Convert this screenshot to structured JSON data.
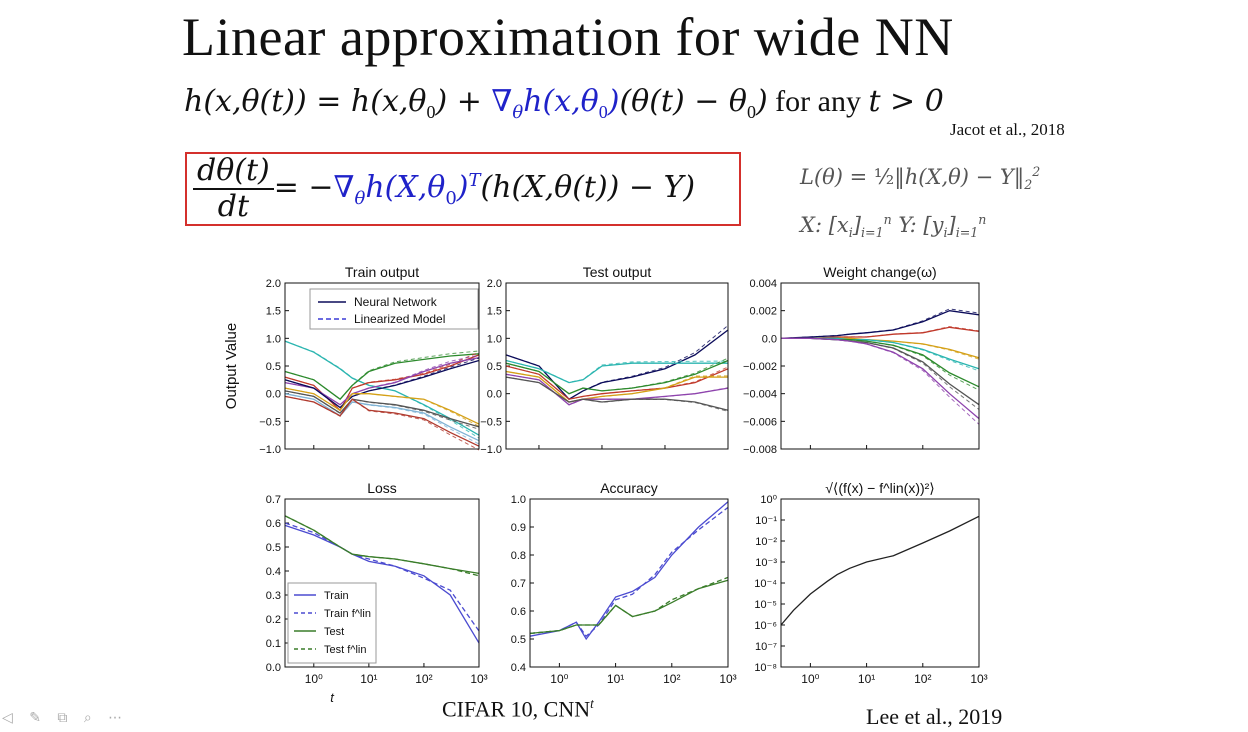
{
  "slide": {
    "title": "Linear approximation for wide NN",
    "eq1_a": "h(x,θ(t)) = h(x,θ",
    "eq1_b": "0",
    "eq1_c": ") + ",
    "eq1_grad": "∇",
    "eq1_gradsub": "θ",
    "eq1_d": "h(x,θ",
    "eq1_e": "0",
    "eq1_f": ")",
    "eq1_g": "(θ(t) − θ",
    "eq1_h": "0",
    "eq1_i": ")",
    "eq1_any": " for any ",
    "eq1_cond": "t > 0",
    "citation_top": "Jacot et al., 2018",
    "eq2_num": "dθ(t)",
    "eq2_den": "dt",
    "eq2_eq": " = −",
    "eq2_grad": "∇",
    "eq2_gradsub": "θ",
    "eq2_h": "h(X,θ",
    "eq2_h0": "0",
    "eq2_hclose": ")",
    "eq2_T": "T",
    "eq2_rest": "(h(X,θ(t)) − Y)",
    "loss_a": "L(θ) = ",
    "loss_half": "½",
    "loss_b": "‖h(X,θ) − Y‖",
    "loss_sub": "2",
    "loss_sup": "2",
    "data_x": "X: [x",
    "data_xi": "i",
    "data_x2": "]",
    "data_xsub": "i=1",
    "data_xsup": "n",
    "data_y": " Y: [y",
    "data_yi": "i",
    "data_y2": "]",
    "data_ysub": "i=1",
    "data_ysup": "n",
    "caption": "CIFAR 10, CNN",
    "caption_sup": "t",
    "citation_bottom": "Lee et al., 2019",
    "controls": "◁ ✎ ⧉ ⌕ ⋯"
  },
  "colors": {
    "blue": "#1f22c9",
    "red_box": "#d4302c",
    "nn": "#0b0b5a",
    "lin": "#3a3ad6",
    "train": "#4b4bd0",
    "test": "#3a7d2a"
  },
  "chart_data": [
    {
      "id": "train_output",
      "type": "line",
      "title": "Train output",
      "ylabel": "Output Value",
      "ylim": [
        -1.0,
        2.0
      ],
      "yticks": [
        "2.0",
        "1.5",
        "1.0",
        "0.5",
        "0.0",
        "−0.5",
        "−1.0"
      ],
      "xscale": "log",
      "xlim": [
        0.3,
        1000
      ],
      "legend": [
        "Neural Network",
        "Linearized Model"
      ],
      "legend_position": "top-right",
      "x": [
        0.3,
        1,
        3,
        5,
        10,
        30,
        100,
        300,
        1000
      ],
      "series": [
        {
          "color": "#2bb5b0",
          "values": [
            0.95,
            0.75,
            0.45,
            0.28,
            0.15,
            0.05,
            -0.2,
            -0.45,
            -0.75
          ]
        },
        {
          "color": "#2d8a2d",
          "values": [
            0.4,
            0.25,
            -0.1,
            0.15,
            0.4,
            0.55,
            0.62,
            0.68,
            0.72
          ]
        },
        {
          "color": "#c0392b",
          "values": [
            0.3,
            0.15,
            -0.3,
            0.1,
            0.2,
            0.25,
            0.35,
            0.5,
            0.7
          ]
        },
        {
          "color": "#8e44ad",
          "values": [
            0.2,
            0.1,
            -0.2,
            0.0,
            0.1,
            0.2,
            0.4,
            0.55,
            0.65
          ]
        },
        {
          "color": "#0b0b5a",
          "values": [
            0.25,
            0.1,
            -0.25,
            -0.05,
            0.05,
            0.15,
            0.3,
            0.45,
            0.6
          ]
        },
        {
          "color": "#d4a017",
          "values": [
            0.1,
            0.0,
            -0.3,
            0.0,
            0.0,
            -0.05,
            -0.1,
            -0.3,
            -0.55
          ]
        },
        {
          "color": "#555555",
          "values": [
            0.05,
            -0.05,
            -0.35,
            -0.1,
            -0.15,
            -0.2,
            -0.3,
            -0.45,
            -0.6
          ]
        },
        {
          "color": "#7fb3d5",
          "values": [
            0.0,
            -0.1,
            -0.4,
            -0.15,
            -0.2,
            -0.25,
            -0.35,
            -0.6,
            -0.85
          ]
        },
        {
          "color": "#b03a2e",
          "values": [
            -0.05,
            -0.15,
            -0.4,
            -0.1,
            -0.3,
            -0.35,
            -0.45,
            -0.7,
            -0.95
          ]
        }
      ]
    },
    {
      "id": "test_output",
      "type": "line",
      "title": "Test output",
      "ylim": [
        -1.0,
        2.0
      ],
      "yticks": [
        "2.0",
        "1.5",
        "1.0",
        "0.5",
        "0.0",
        "−0.5",
        "−1.0"
      ],
      "xscale": "log",
      "xlim": [
        0.3,
        1000
      ],
      "x": [
        0.3,
        1,
        3,
        5,
        10,
        30,
        100,
        300,
        1000
      ],
      "series": [
        {
          "color": "#0b0b5a",
          "values": [
            0.7,
            0.5,
            -0.1,
            0.05,
            0.2,
            0.3,
            0.45,
            0.7,
            1.15
          ]
        },
        {
          "color": "#2bb5b0",
          "values": [
            0.6,
            0.45,
            0.2,
            0.25,
            0.5,
            0.55,
            0.55,
            0.55,
            0.55
          ]
        },
        {
          "color": "#2d8a2d",
          "values": [
            0.55,
            0.4,
            0.0,
            0.1,
            0.05,
            0.1,
            0.2,
            0.35,
            0.6
          ]
        },
        {
          "color": "#c0392b",
          "values": [
            0.5,
            0.35,
            -0.1,
            -0.05,
            0.0,
            0.05,
            0.1,
            0.2,
            0.45
          ]
        },
        {
          "color": "#d4a017",
          "values": [
            0.4,
            0.3,
            -0.15,
            -0.1,
            -0.05,
            0.0,
            0.1,
            0.3,
            0.3
          ]
        },
        {
          "color": "#8e44ad",
          "values": [
            0.35,
            0.25,
            -0.2,
            -0.1,
            -0.1,
            -0.1,
            -0.05,
            0.0,
            0.1
          ]
        },
        {
          "color": "#555555",
          "values": [
            0.3,
            0.2,
            -0.15,
            -0.1,
            -0.15,
            -0.1,
            -0.1,
            -0.15,
            -0.3
          ]
        }
      ]
    },
    {
      "id": "weight_change",
      "type": "line",
      "title": "Weight change(ω)",
      "ylim": [
        -0.008,
        0.004
      ],
      "yticks": [
        "0.004",
        "0.002",
        "0.0",
        "−0.002",
        "−0.004",
        "−0.006",
        "−0.008"
      ],
      "xscale": "log",
      "xlim": [
        0.3,
        1000
      ],
      "x": [
        0.3,
        1,
        3,
        5,
        10,
        30,
        100,
        300,
        1000
      ],
      "series": [
        {
          "color": "#0b0b5a",
          "values": [
            0,
            0.0001,
            0.0002,
            0.0003,
            0.0004,
            0.0006,
            0.0012,
            0.002,
            0.0017
          ]
        },
        {
          "color": "#c0392b",
          "values": [
            0,
            0,
            0.0001,
            0.0001,
            0.0001,
            0.0003,
            0.0004,
            0.0008,
            0.0005
          ]
        },
        {
          "color": "#d4a017",
          "values": [
            0,
            0,
            0,
            0,
            -0.0001,
            -0.0002,
            -0.0004,
            -0.0008,
            -0.0014
          ]
        },
        {
          "color": "#2bb5b0",
          "values": [
            0,
            0,
            0,
            -0.0001,
            -0.0001,
            -0.0003,
            -0.0008,
            -0.0015,
            -0.0022
          ]
        },
        {
          "color": "#2d8a2d",
          "values": [
            0,
            0,
            -0.0001,
            -0.0001,
            -0.0002,
            -0.0005,
            -0.0012,
            -0.0025,
            -0.0035
          ]
        },
        {
          "color": "#555555",
          "values": [
            0,
            0,
            -0.0001,
            -0.0002,
            -0.0003,
            -0.0007,
            -0.0017,
            -0.0033,
            -0.0048
          ]
        },
        {
          "color": "#8e44ad",
          "values": [
            0,
            0,
            -0.0001,
            -0.0002,
            -0.0004,
            -0.001,
            -0.0022,
            -0.004,
            -0.0058
          ]
        }
      ]
    },
    {
      "id": "loss",
      "type": "line",
      "title": "Loss",
      "xlabel": "t",
      "ylim": [
        0.0,
        0.7
      ],
      "yticks": [
        "0.7",
        "0.6",
        "0.5",
        "0.4",
        "0.3",
        "0.2",
        "0.1",
        "0.0"
      ],
      "xscale": "log",
      "xlim": [
        0.3,
        1000
      ],
      "xticks": [
        "10⁰",
        "10¹",
        "10²",
        "10³"
      ],
      "legend": [
        "Train",
        "Train f^lin",
        "Test",
        "Test f^lin"
      ],
      "legend_position": "bottom-left",
      "x": [
        0.3,
        1,
        3,
        5,
        10,
        30,
        100,
        300,
        1000
      ],
      "series": [
        {
          "name": "Train",
          "color": "#4b4bd0",
          "values": [
            0.59,
            0.55,
            0.5,
            0.47,
            0.44,
            0.42,
            0.38,
            0.3,
            0.1
          ]
        },
        {
          "name": "Train f^lin",
          "color": "#4b4bd0",
          "values": [
            0.6,
            0.56,
            0.5,
            0.47,
            0.45,
            0.42,
            0.37,
            0.32,
            0.15
          ]
        },
        {
          "name": "Test",
          "color": "#3a7d2a",
          "values": [
            0.63,
            0.57,
            0.5,
            0.47,
            0.46,
            0.45,
            0.43,
            0.41,
            0.39
          ]
        },
        {
          "name": "Test f^lin",
          "color": "#3a7d2a",
          "values": [
            0.63,
            0.57,
            0.5,
            0.47,
            0.46,
            0.45,
            0.43,
            0.41,
            0.38
          ]
        }
      ]
    },
    {
      "id": "accuracy",
      "type": "line",
      "title": "Accuracy",
      "ylim": [
        0.4,
        1.0
      ],
      "yticks": [
        "1.0",
        "0.9",
        "0.8",
        "0.7",
        "0.6",
        "0.5",
        "0.4"
      ],
      "xscale": "log",
      "xlim": [
        0.3,
        1000
      ],
      "xticks": [
        "10⁰",
        "10¹",
        "10²",
        "10³"
      ],
      "x": [
        0.3,
        1,
        2,
        3,
        5,
        10,
        20,
        50,
        100,
        300,
        1000
      ],
      "series": [
        {
          "name": "Train",
          "color": "#4b4bd0",
          "values": [
            0.51,
            0.53,
            0.56,
            0.5,
            0.56,
            0.65,
            0.67,
            0.72,
            0.8,
            0.9,
            0.99
          ]
        },
        {
          "name": "Train f^lin",
          "color": "#4b4bd0",
          "values": [
            0.52,
            0.53,
            0.56,
            0.51,
            0.55,
            0.64,
            0.66,
            0.73,
            0.81,
            0.89,
            0.97
          ]
        },
        {
          "name": "Test",
          "color": "#3a7d2a",
          "values": [
            0.52,
            0.53,
            0.55,
            0.55,
            0.55,
            0.62,
            0.58,
            0.6,
            0.63,
            0.68,
            0.71
          ]
        },
        {
          "name": "Test f^lin",
          "color": "#3a7d2a",
          "values": [
            0.52,
            0.53,
            0.55,
            0.55,
            0.55,
            0.62,
            0.58,
            0.6,
            0.64,
            0.68,
            0.72
          ]
        }
      ]
    },
    {
      "id": "rmse",
      "type": "line",
      "title": "√⟨(f(x) − f^lin(x))²⟩",
      "yscale": "log",
      "ylim": [
        1e-08,
        1
      ],
      "yticks": [
        "10⁰",
        "10⁻¹",
        "10⁻²",
        "10⁻³",
        "10⁻⁴",
        "10⁻⁵",
        "10⁻⁶",
        "10⁻⁷",
        "10⁻⁸"
      ],
      "xscale": "log",
      "xlim": [
        0.3,
        1000
      ],
      "xticks": [
        "10⁰",
        "10¹",
        "10²",
        "10³"
      ],
      "x": [
        0.3,
        0.5,
        1,
        2,
        3,
        5,
        10,
        30,
        100,
        300,
        1000
      ],
      "series": [
        {
          "color": "#222222",
          "values": [
            1e-06,
            5e-06,
            3e-05,
            0.00012,
            0.00025,
            0.0005,
            0.001,
            0.002,
            0.008,
            0.03,
            0.15
          ]
        }
      ]
    }
  ]
}
